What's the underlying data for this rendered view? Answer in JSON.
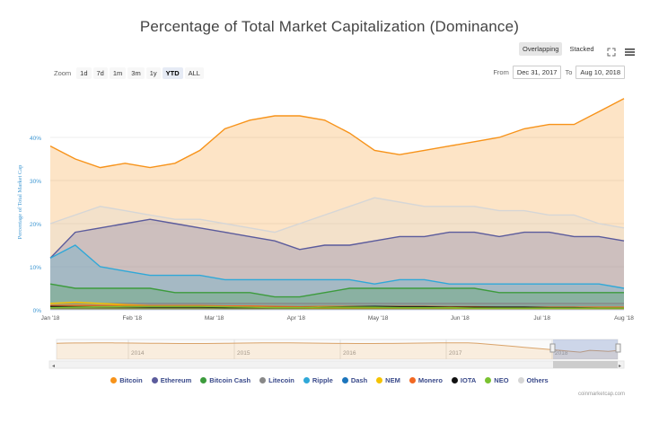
{
  "title": "Percentage of Total Market Capitalization (Dominance)",
  "modes": {
    "overlapping": "Overlapping",
    "stacked": "Stacked"
  },
  "zoom": {
    "label": "Zoom",
    "options": [
      "1d",
      "7d",
      "1m",
      "3m",
      "1y",
      "YTD",
      "ALL"
    ],
    "active": "YTD"
  },
  "range": {
    "from_label": "From",
    "from": "Dec 31, 2017",
    "to_label": "To",
    "to": "Aug 10, 2018"
  },
  "credit": "coinmarketcap.com",
  "navigator": {
    "years": [
      "2014",
      "2015",
      "2016",
      "2017",
      "2018"
    ]
  },
  "chart_data": {
    "type": "area",
    "title": "Percentage of Total Market Capitalization (Dominance)",
    "ylabel": "Percentage of Total Market Cap",
    "xlabel": "",
    "ylim": [
      0,
      50
    ],
    "yticks": [
      "0%",
      "10%",
      "20%",
      "30%",
      "40%"
    ],
    "xticks": [
      "Jan '18",
      "Feb '18",
      "Mar '18",
      "Apr '18",
      "May '18",
      "Jun '18",
      "Jul '18",
      "Aug '18"
    ],
    "x": [
      "Jan 1",
      "Jan 8",
      "Jan 15",
      "Jan 22",
      "Feb 1",
      "Feb 10",
      "Feb 20",
      "Mar 1",
      "Mar 10",
      "Mar 20",
      "Apr 1",
      "Apr 10",
      "Apr 20",
      "May 1",
      "May 10",
      "May 20",
      "Jun 1",
      "Jun 10",
      "Jun 20",
      "Jul 1",
      "Jul 10",
      "Jul 20",
      "Aug 1",
      "Aug 10"
    ],
    "legend_position": "bottom",
    "series": [
      {
        "name": "Bitcoin",
        "color": "#f7931a",
        "values": [
          38,
          35,
          33,
          34,
          33,
          34,
          37,
          42,
          44,
          45,
          45,
          44,
          41,
          37,
          36,
          37,
          38,
          39,
          40,
          42,
          43,
          43,
          46,
          49
        ]
      },
      {
        "name": "Others",
        "color": "#d6d6d6",
        "values": [
          20,
          22,
          24,
          23,
          22,
          21,
          21,
          20,
          19,
          18,
          20,
          22,
          24,
          26,
          25,
          24,
          24,
          24,
          23,
          23,
          22,
          22,
          20,
          19
        ]
      },
      {
        "name": "Ethereum",
        "color": "#5b5b9c",
        "values": [
          12,
          18,
          19,
          20,
          21,
          20,
          19,
          18,
          17,
          16,
          14,
          15,
          15,
          16,
          17,
          17,
          18,
          18,
          17,
          18,
          18,
          17,
          17,
          16
        ]
      },
      {
        "name": "Ripple",
        "color": "#2fa8d8",
        "values": [
          12,
          15,
          10,
          9,
          8,
          8,
          8,
          7,
          7,
          7,
          7,
          7,
          7,
          6,
          7,
          7,
          6,
          6,
          6,
          6,
          6,
          6,
          6,
          5
        ]
      },
      {
        "name": "Bitcoin Cash",
        "color": "#3c9b3c",
        "values": [
          6,
          5,
          5,
          5,
          5,
          4,
          4,
          4,
          4,
          3,
          3,
          4,
          5,
          5,
          5,
          5,
          5,
          5,
          4,
          4,
          4,
          4,
          4,
          4
        ]
      },
      {
        "name": "Litecoin",
        "color": "#888888",
        "values": [
          1.5,
          1.5,
          1.5,
          1.5,
          1.5,
          1.5,
          1.5,
          1.5,
          1.5,
          1.5,
          1.5,
          1.5,
          1.5,
          1.5,
          1.5,
          1.5,
          1.5,
          1.5,
          1.5,
          1.5,
          1.5,
          1.5,
          1.5,
          1.5
        ]
      },
      {
        "name": "Dash",
        "color": "#1c75bc",
        "values": [
          1,
          1,
          1,
          1,
          1,
          1,
          0.8,
          0.8,
          0.8,
          0.7,
          0.6,
          0.7,
          0.7,
          0.7,
          0.6,
          0.6,
          0.6,
          0.5,
          0.5,
          0.5,
          0.5,
          0.5,
          0.5,
          0.5
        ]
      },
      {
        "name": "NEM",
        "color": "#f5c300",
        "values": [
          1.5,
          1.8,
          1.5,
          1.2,
          1,
          0.8,
          0.7,
          0.6,
          0.5,
          0.5,
          0.4,
          0.4,
          0.4,
          0.4,
          0.4,
          0.4,
          0.4,
          0.3,
          0.3,
          0.3,
          0.3,
          0.3,
          0.3,
          0.3
        ]
      },
      {
        "name": "Monero",
        "color": "#f26822",
        "values": [
          1,
          1,
          1,
          1,
          1,
          1,
          1,
          0.9,
          0.9,
          0.8,
          0.7,
          0.8,
          0.8,
          0.8,
          0.8,
          0.8,
          0.7,
          0.7,
          0.6,
          0.6,
          0.6,
          0.6,
          0.6,
          0.6
        ]
      },
      {
        "name": "IOTA",
        "color": "#111111",
        "values": [
          0.8,
          0.7,
          0.7,
          0.7,
          0.6,
          0.6,
          0.6,
          0.5,
          0.5,
          0.5,
          0.5,
          0.6,
          0.7,
          0.8,
          0.7,
          0.7,
          0.6,
          0.6,
          0.6,
          0.6,
          0.5,
          0.5,
          0.4,
          0.4
        ]
      },
      {
        "name": "NEO",
        "color": "#7ac231",
        "values": [
          0.5,
          0.6,
          0.7,
          0.8,
          0.8,
          0.8,
          0.8,
          0.7,
          0.6,
          0.5,
          0.5,
          0.6,
          0.6,
          0.6,
          0.5,
          0.5,
          0.5,
          0.4,
          0.4,
          0.4,
          0.4,
          0.4,
          0.4,
          0.4
        ]
      }
    ],
    "legend": [
      "Bitcoin",
      "Ethereum",
      "Bitcoin Cash",
      "Litecoin",
      "Ripple",
      "Dash",
      "NEM",
      "Monero",
      "IOTA",
      "NEO",
      "Others"
    ]
  }
}
